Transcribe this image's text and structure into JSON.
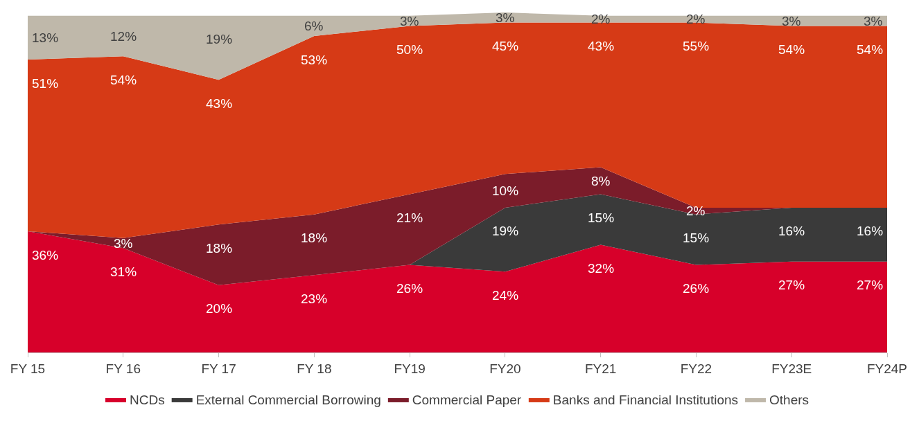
{
  "chart_data": {
    "type": "area",
    "stacked": true,
    "categories": [
      "FY 15",
      "FY 16",
      "FY 17",
      "FY 18",
      "FY19",
      "FY20",
      "FY21",
      "FY22",
      "FY23E",
      "FY24P"
    ],
    "series": [
      {
        "name": "NCDs",
        "color": "#d7002a",
        "values": [
          36,
          31,
          20,
          23,
          26,
          24,
          32,
          26,
          27,
          27
        ],
        "value_labels": [
          "36%",
          "31%",
          "20%",
          "23%",
          "26%",
          "24%",
          "32%",
          "26%",
          "27%",
          "27%"
        ]
      },
      {
        "name": "External Commercial Borrowing",
        "color": "#3a3a3a",
        "values": [
          0,
          0,
          0,
          0,
          0,
          19,
          15,
          15,
          16,
          16
        ],
        "value_labels": [
          null,
          null,
          null,
          null,
          null,
          "19%",
          "15%",
          "15%",
          "16%",
          "16%"
        ]
      },
      {
        "name": "Commercial Paper",
        "color": "#7b1c2a",
        "values": [
          0,
          3,
          18,
          18,
          21,
          10,
          8,
          2,
          0,
          0
        ],
        "value_labels": [
          null,
          "3%",
          "18%",
          "18%",
          "21%",
          "10%",
          "8%",
          "2%",
          null,
          null
        ]
      },
      {
        "name": "Banks and Financial Institutions",
        "color": "#d63a16",
        "values": [
          51,
          54,
          43,
          53,
          50,
          45,
          43,
          55,
          54,
          54
        ],
        "value_labels": [
          "51%",
          "54%",
          "43%",
          "53%",
          "50%",
          "45%",
          "43%",
          "55%",
          "54%",
          "54%"
        ]
      },
      {
        "name": "Others",
        "color": "#bfb8aa",
        "values": [
          13,
          12,
          19,
          6,
          3,
          3,
          2,
          2,
          3,
          3
        ],
        "value_labels": [
          "13%",
          "12%",
          "19%",
          "6%",
          "3%",
          "3%",
          "2%",
          "2%",
          "3%",
          "3%"
        ]
      }
    ],
    "legend": "bottom",
    "grid": false,
    "marker": "none"
  }
}
